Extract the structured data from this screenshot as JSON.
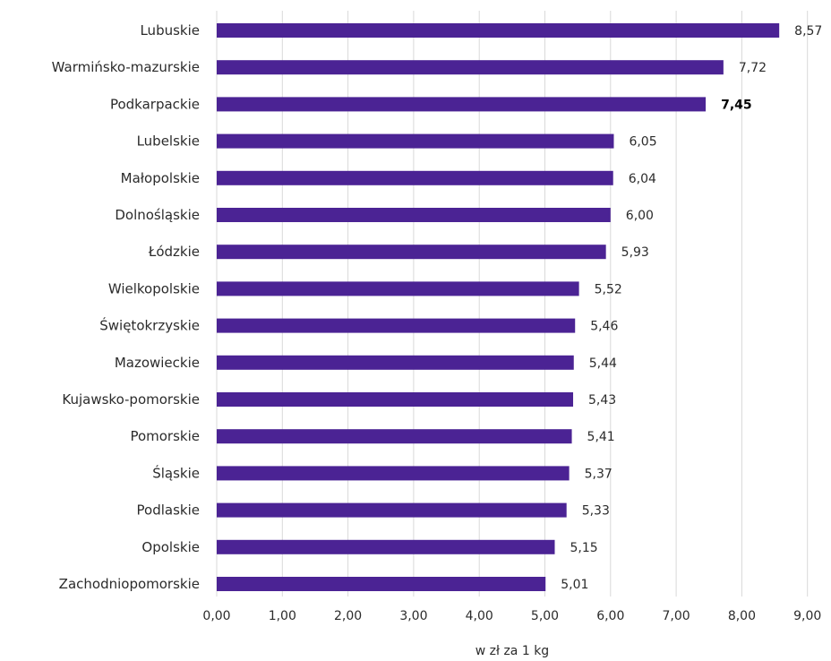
{
  "chart_data": {
    "type": "bar",
    "orientation": "horizontal",
    "categories": [
      "Lubuskie",
      "Warmińsko-mazurskie",
      "Podkarpackie",
      "Lubelskie",
      "Małopolskie",
      "Dolnośląskie",
      "Łódzkie",
      "Wielkopolskie",
      "Świętokrzyskie",
      "Mazowieckie",
      "Kujawsko-pomorskie",
      "Pomorskie",
      "Śląskie",
      "Podlaskie",
      "Opolskie",
      "Zachodniopomorskie"
    ],
    "values": [
      8.57,
      7.72,
      7.45,
      6.05,
      6.04,
      6.0,
      5.93,
      5.52,
      5.46,
      5.44,
      5.43,
      5.41,
      5.37,
      5.33,
      5.15,
      5.01
    ],
    "value_labels": [
      "8,57",
      "7,72",
      "7,45",
      "6,05",
      "6,04",
      "6,00",
      "5,93",
      "5,52",
      "5,46",
      "5,44",
      "5,43",
      "5,41",
      "5,37",
      "5,33",
      "5,15",
      "5,01"
    ],
    "highlighted_category": "Podkarpackie",
    "xlim": [
      0,
      9
    ],
    "x_ticks": [
      0,
      1,
      2,
      3,
      4,
      5,
      6,
      7,
      8,
      9
    ],
    "x_tick_labels": [
      "0,00",
      "1,00",
      "2,00",
      "3,00",
      "4,00",
      "5,00",
      "6,00",
      "7,00",
      "8,00",
      "9,00"
    ],
    "xlabel": "w zł za 1 kg",
    "ylabel": "",
    "title": "",
    "grid": "vertical",
    "legend": "none",
    "colors": {
      "bar": "#4b2394",
      "grid": "#d9d9d9",
      "text": "#2b2b2b"
    }
  }
}
